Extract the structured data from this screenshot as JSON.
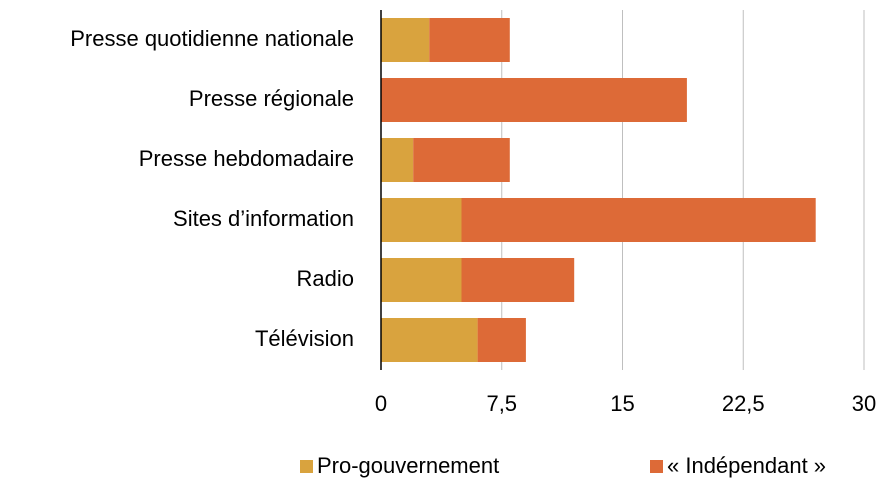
{
  "chart_data": {
    "type": "stacked-bar-horizontal",
    "categories": [
      "Presse quotidienne nationale",
      "Presse régionale",
      "Presse hebdomadaire",
      "Sites d’information",
      "Radio",
      "Télévision"
    ],
    "series": [
      {
        "name": "Pro-gouvernement",
        "color": "#d9a33e",
        "values": [
          3,
          0,
          2,
          5,
          5,
          6
        ]
      },
      {
        "name": "« Indépendant »",
        "color": "#dd6a37",
        "values": [
          5,
          19,
          6,
          22,
          7,
          3
        ]
      }
    ],
    "xlim": [
      0,
      30
    ],
    "xticks": [
      0,
      {
        "value": 7.5,
        "label": "7,5"
      },
      15,
      {
        "value": 22.5,
        "label": "22,5"
      },
      30
    ],
    "grid": true
  }
}
